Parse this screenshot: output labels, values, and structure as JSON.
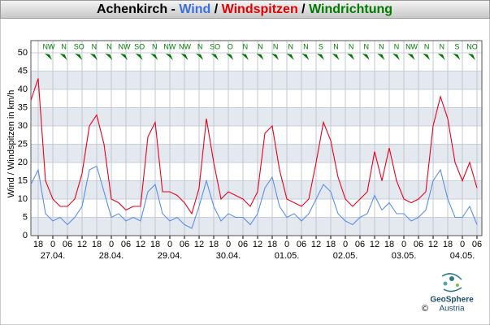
{
  "chart_data": {
    "type": "line",
    "title_parts": [
      {
        "text": "Achenkirch",
        "color": "#000000"
      },
      {
        "text": "-",
        "color": "#000000"
      },
      {
        "text": "Wind",
        "color": "#3a6fe0"
      },
      {
        "text": "/",
        "color": "#000000"
      },
      {
        "text": "Windspitzen",
        "color": "#e00000"
      },
      {
        "text": "/",
        "color": "#000000"
      },
      {
        "text": "Windrichtung",
        "color": "#007a00"
      }
    ],
    "y_label": "Wind / Windspitzen in km/h",
    "x": [
      -9,
      -6,
      -3,
      0,
      3,
      6,
      9,
      12,
      15,
      18,
      21,
      24,
      27,
      30,
      33,
      36,
      39,
      42,
      45,
      48,
      51,
      54,
      57,
      60,
      63,
      66,
      69,
      72,
      75,
      78,
      81,
      84,
      87,
      90,
      93,
      96,
      99,
      102,
      105,
      108,
      111,
      114,
      117,
      120,
      123,
      126,
      129,
      132,
      135,
      138,
      141,
      144,
      147,
      150,
      153,
      156,
      159,
      162,
      165,
      168,
      171,
      174
    ],
    "series": [
      {
        "name": "Wind",
        "color": "#5b8ee6",
        "values": [
          14,
          18,
          6,
          4,
          5,
          3,
          5,
          8,
          18,
          19,
          12,
          5,
          6,
          4,
          5,
          4,
          12,
          14,
          6,
          4,
          5,
          3,
          2,
          8,
          15,
          8,
          4,
          6,
          5,
          5,
          3,
          6,
          13,
          16,
          8,
          5,
          6,
          4,
          6,
          10,
          14,
          12,
          6,
          4,
          3,
          5,
          6,
          11,
          7,
          9,
          6,
          6,
          4,
          5,
          7,
          15,
          18,
          10,
          5,
          5,
          8,
          3
        ]
      },
      {
        "name": "Windspitzen",
        "color": "#e8001c",
        "values": [
          37,
          43,
          15,
          10,
          8,
          8,
          10,
          17,
          30,
          33,
          25,
          10,
          9,
          7,
          8,
          8,
          27,
          31,
          12,
          12,
          11,
          9,
          6,
          13,
          32,
          20,
          10,
          12,
          11,
          10,
          8,
          12,
          28,
          30,
          18,
          10,
          9,
          8,
          10,
          20,
          31,
          26,
          16,
          10,
          8,
          10,
          12,
          23,
          15,
          24,
          15,
          10,
          9,
          10,
          12,
          30,
          38,
          32,
          20,
          15,
          20,
          13
        ]
      }
    ],
    "xlim": [
      -9,
      176
    ],
    "ylim": [
      0,
      50
    ],
    "yticks": [
      0,
      5,
      10,
      15,
      20,
      25,
      30,
      35,
      40,
      45,
      50
    ],
    "xticks": [
      {
        "value": -6,
        "label": "18"
      },
      {
        "value": 0,
        "label": "0"
      },
      {
        "value": 6,
        "label": "06"
      },
      {
        "value": 12,
        "label": "12"
      },
      {
        "value": 18,
        "label": "18"
      },
      {
        "value": 24,
        "label": "0"
      },
      {
        "value": 30,
        "label": "06"
      },
      {
        "value": 36,
        "label": "12"
      },
      {
        "value": 42,
        "label": "18"
      },
      {
        "value": 48,
        "label": "0"
      },
      {
        "value": 54,
        "label": "06"
      },
      {
        "value": 60,
        "label": "12"
      },
      {
        "value": 66,
        "label": "18"
      },
      {
        "value": 72,
        "label": "0"
      },
      {
        "value": 78,
        "label": "06"
      },
      {
        "value": 84,
        "label": "12"
      },
      {
        "value": 90,
        "label": "18"
      },
      {
        "value": 96,
        "label": "0"
      },
      {
        "value": 102,
        "label": "06"
      },
      {
        "value": 108,
        "label": "12"
      },
      {
        "value": 114,
        "label": "18"
      },
      {
        "value": 120,
        "label": "0"
      },
      {
        "value": 126,
        "label": "06"
      },
      {
        "value": 132,
        "label": "12"
      },
      {
        "value": 138,
        "label": "18"
      },
      {
        "value": 144,
        "label": "0"
      },
      {
        "value": 150,
        "label": "06"
      },
      {
        "value": 156,
        "label": "12"
      },
      {
        "value": 162,
        "label": "18"
      },
      {
        "value": 168,
        "label": "0"
      },
      {
        "value": 174,
        "label": "06"
      }
    ],
    "date_labels": [
      {
        "value": 0,
        "label": "27.04."
      },
      {
        "value": 24,
        "label": "28.04."
      },
      {
        "value": 48,
        "label": "29.04."
      },
      {
        "value": 72,
        "label": "30.04."
      },
      {
        "value": 96,
        "label": "01.05."
      },
      {
        "value": 120,
        "label": "02.05."
      },
      {
        "value": 144,
        "label": "03.05."
      },
      {
        "value": 168,
        "label": "04.05."
      }
    ],
    "wind_direction": {
      "color": "#007a00",
      "labels": [
        "NW",
        "N",
        "SO",
        "N",
        "N",
        "NW",
        "SO",
        "N",
        "NW",
        "NW",
        "N",
        "SO",
        "O",
        "N",
        "N",
        "N",
        "N",
        "N",
        "S",
        "N",
        "N",
        "N",
        "N",
        "N",
        "NW",
        "N",
        "N",
        "S",
        "NO"
      ]
    },
    "grid": true,
    "logo": {
      "name": "GeoSphere",
      "country": "Austria",
      "copyright": "©"
    }
  }
}
